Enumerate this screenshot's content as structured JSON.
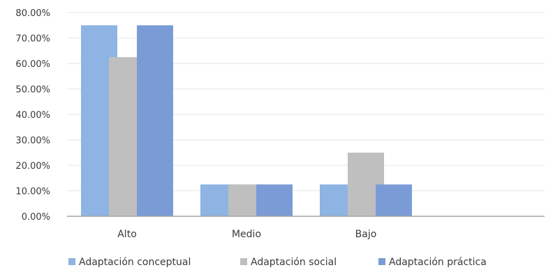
{
  "chart_data": {
    "type": "bar",
    "categories": [
      "Alto",
      "Medio",
      "Bajo",
      ""
    ],
    "series": [
      {
        "name": "Adaptación conceptual",
        "values": [
          75,
          12.5,
          12.5,
          null
        ],
        "color": "#8DB4E2"
      },
      {
        "name": "Adaptación social",
        "values": [
          62.5,
          12.5,
          25,
          null
        ],
        "color": "#BFBFBF"
      },
      {
        "name": "Adaptación práctica",
        "values": [
          75,
          12.5,
          12.5,
          null
        ],
        "color": "#7A9BD6"
      }
    ],
    "y_ticks": [
      "0.00%",
      "10.00%",
      "20.00%",
      "30.00%",
      "40.00%",
      "50.00%",
      "60.00%",
      "70.00%",
      "80.00%"
    ],
    "ylim": [
      0,
      80
    ],
    "grid": true,
    "legend_position": "bottom",
    "title": "",
    "xlabel": "",
    "ylabel": ""
  }
}
